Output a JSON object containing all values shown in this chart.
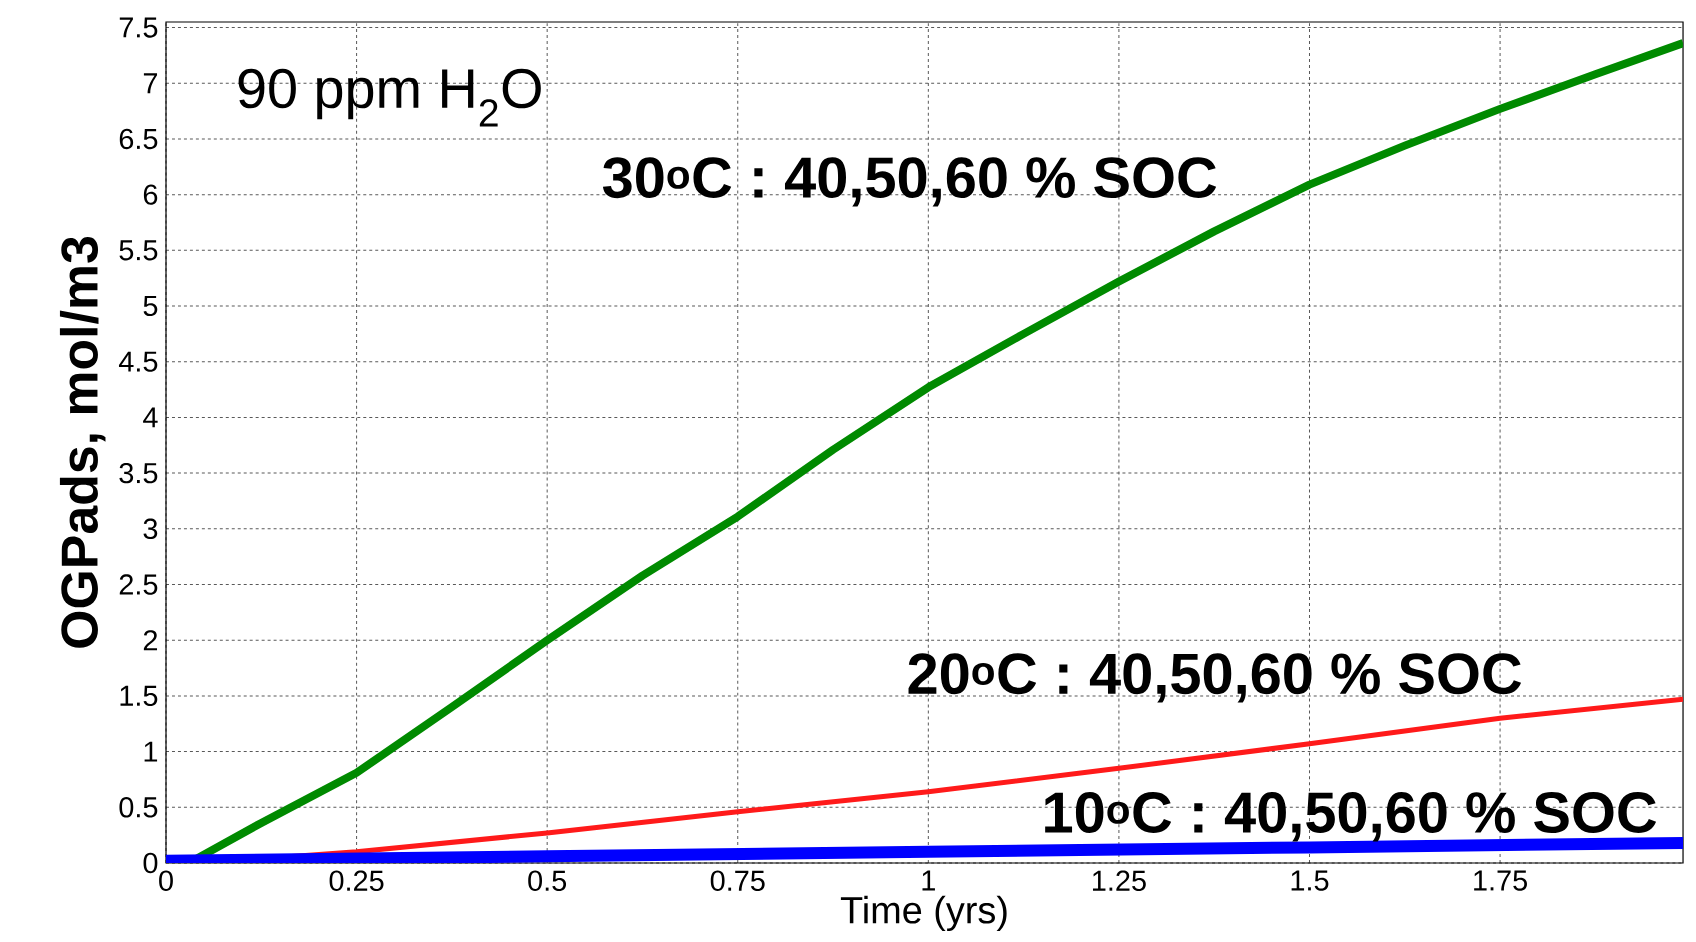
{
  "chart_data": {
    "type": "line",
    "xlabel": "Time (yrs)",
    "ylabel": "OGPads, mol/m3",
    "annotations": [
      "90 ppm H$_{2}$O"
    ],
    "series": [
      {
        "name": "30$^{o}$C : 40,50,60 % SOC",
        "color": "#008a00",
        "x": [
          0.03,
          0.125,
          0.25,
          0.375,
          0.5,
          0.625,
          0.75,
          0.875,
          1,
          1.125,
          1.25,
          1.375,
          1.5,
          1.625,
          1.75,
          1.875,
          1.99
        ],
        "values": [
          0,
          0.36,
          0.81,
          1.4,
          2.0,
          2.58,
          3.11,
          3.71,
          4.27,
          4.75,
          5.22,
          5.67,
          6.09,
          6.44,
          6.77,
          7.08,
          7.36
        ]
      },
      {
        "name": "20$^{o}$C : 40,50,60 % SOC",
        "color": "#ff1a1a",
        "x": [
          0.05,
          0.25,
          0.5,
          0.75,
          1,
          1.25,
          1.5,
          1.75,
          1.99
        ],
        "values": [
          0,
          0.1,
          0.27,
          0.46,
          0.64,
          0.85,
          1.07,
          1.3,
          1.47
        ]
      },
      {
        "name": "10$^{o}$C : 40,50,60 % SOC",
        "color": "#0000ff",
        "x": [
          0,
          0.5,
          1,
          1.5,
          1.99
        ],
        "values": [
          0.02,
          0.06,
          0.1,
          0.14,
          0.18
        ]
      }
    ],
    "xlim": [
      0,
      1.99
    ],
    "ylim": [
      0,
      7.55
    ],
    "xticks": [
      0,
      0.25,
      0.5,
      0.75,
      1,
      1.25,
      1.5,
      1.75
    ],
    "yticks": [
      0,
      0.5,
      1,
      1.5,
      2,
      2.5,
      3,
      3.5,
      4,
      4.5,
      5,
      5.5,
      6,
      6.5,
      7,
      7.5
    ],
    "grid": true,
    "marker": "none",
    "line_style": "solid"
  }
}
